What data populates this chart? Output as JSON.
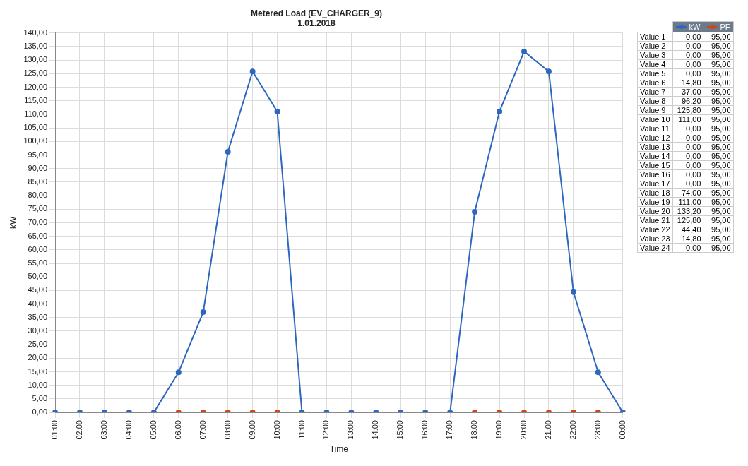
{
  "chart_data": [
    {
      "type": "line",
      "title": "Metered Load (EV_CHARGER_9)",
      "subtitle": "1.01.2018",
      "xlabel": "Time",
      "ylabel": "kW",
      "categories": [
        "01:00",
        "02:00",
        "03:00",
        "04:00",
        "05:00",
        "06:00",
        "07:00",
        "08:00",
        "09:00",
        "10:00",
        "11:00",
        "12:00",
        "13:00",
        "14:00",
        "15:00",
        "16:00",
        "17:00",
        "18:00",
        "19:00",
        "20:00",
        "21:00",
        "22:00",
        "23:00",
        "00:00"
      ],
      "series": [
        {
          "color": "#2e67c0",
          "values": [
            0,
            0,
            0,
            0,
            0,
            14.8,
            37,
            96.2,
            125.8,
            111,
            0,
            0,
            0,
            0,
            0,
            0,
            0,
            74,
            111,
            133.2,
            125.8,
            44.4,
            14.8,
            0
          ]
        },
        {
          "color": "#d0451b",
          "values": [
            null,
            null,
            null,
            null,
            null,
            0,
            0,
            0,
            0,
            0,
            null,
            null,
            null,
            null,
            null,
            null,
            null,
            0,
            0,
            0,
            0,
            0,
            0,
            null
          ]
        }
      ],
      "ylim": [
        0,
        140
      ],
      "yticks": [
        {
          "value": 0,
          "label": "0,00"
        },
        {
          "value": 5,
          "label": "5,00"
        },
        {
          "value": 10,
          "label": "10,00"
        },
        {
          "value": 15,
          "label": "15,00"
        },
        {
          "value": 20,
          "label": "20,00"
        },
        {
          "value": 25,
          "label": "25,00"
        },
        {
          "value": 30,
          "label": "30,00"
        },
        {
          "value": 35,
          "label": "35,00"
        },
        {
          "value": 40,
          "label": "40,00"
        },
        {
          "value": 45,
          "label": "45,00"
        },
        {
          "value": 50,
          "label": "50,00"
        },
        {
          "value": 55,
          "label": "55,00"
        },
        {
          "value": 60,
          "label": "60,00"
        },
        {
          "value": 65,
          "label": "65,00"
        },
        {
          "value": 70,
          "label": "70,00"
        },
        {
          "value": 75,
          "label": "75,00"
        },
        {
          "value": 80,
          "label": "80,00"
        },
        {
          "value": 85,
          "label": "85,00"
        },
        {
          "value": 90,
          "label": "90,00"
        },
        {
          "value": 95,
          "label": "95,00"
        },
        {
          "value": 100,
          "label": "100,00"
        },
        {
          "value": 105,
          "label": "105,00"
        },
        {
          "value": 110,
          "label": "110,00"
        },
        {
          "value": 115,
          "label": "115,00"
        },
        {
          "value": 120,
          "label": "120,00"
        },
        {
          "value": 125,
          "label": "125,00"
        },
        {
          "value": 130,
          "label": "130,00"
        },
        {
          "value": 135,
          "label": "135,00"
        },
        {
          "value": 140,
          "label": "140,00"
        }
      ],
      "grid": true,
      "marker": "circle",
      "line_style": "solid"
    },
    {
      "type": "other",
      "legend": "top right",
      "categories": [
        "Value 1",
        "Value 2",
        "Value 3",
        "Value 4",
        "Value 5",
        "Value 6",
        "Value 7",
        "Value 8",
        "Value 9",
        "Value 10",
        "Value 11",
        "Value 12",
        "Value 13",
        "Value 14",
        "Value 15",
        "Value 16",
        "Value 17",
        "Value 18",
        "Value 19",
        "Value 20",
        "Value 21",
        "Value 22",
        "Value 23",
        "Value 24"
      ],
      "series": [
        {
          "name": "kW",
          "color": "#2e67c0",
          "values": [
            0,
            0,
            0,
            0,
            0,
            14.8,
            37,
            96.2,
            125.8,
            111,
            0,
            0,
            0,
            0,
            0,
            0,
            0,
            74,
            111,
            133.2,
            125.8,
            44.4,
            14.8,
            0
          ],
          "value_labels": [
            "0,00",
            "0,00",
            "0,00",
            "0,00",
            "0,00",
            "14,80",
            "37,00",
            "96,20",
            "125,80",
            "111,00",
            "0,00",
            "0,00",
            "0,00",
            "0,00",
            "0,00",
            "0,00",
            "0,00",
            "74,00",
            "111,00",
            "133,20",
            "125,80",
            "44,40",
            "14,80",
            "0,00"
          ]
        },
        {
          "name": "PF",
          "color": "#d0451b",
          "values": [
            95,
            95,
            95,
            95,
            95,
            95,
            95,
            95,
            95,
            95,
            95,
            95,
            95,
            95,
            95,
            95,
            95,
            95,
            95,
            95,
            95,
            95,
            95,
            95
          ],
          "value_labels": [
            "95,00",
            "95,00",
            "95,00",
            "95,00",
            "95,00",
            "95,00",
            "95,00",
            "95,00",
            "95,00",
            "95,00",
            "95,00",
            "95,00",
            "95,00",
            "95,00",
            "95,00",
            "95,00",
            "95,00",
            "95,00",
            "95,00",
            "95,00",
            "95,00",
            "95,00",
            "95,00",
            "95,00"
          ]
        }
      ]
    }
  ]
}
